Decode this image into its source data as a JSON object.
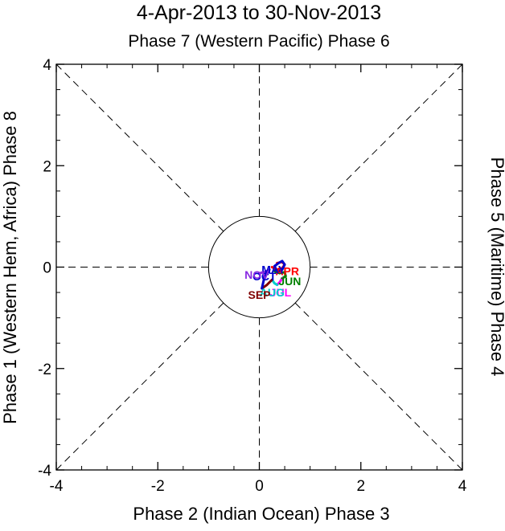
{
  "chart_data": {
    "type": "line",
    "title": "4-Apr-2013 to 30-Nov-2013",
    "top_label": "Phase 7 (Western Pacific) Phase 6",
    "bottom_label": "Phase 2 (Indian Ocean) Phase 3",
    "left_label": "Phase 1 (Western Hem, Africa) Phase 8",
    "right_label": "Phase 5 (Maritime) Phase 4",
    "xlim": [
      -4,
      4
    ],
    "ylim": [
      -4,
      4
    ],
    "x_ticks": [
      -4,
      -2,
      0,
      2,
      4
    ],
    "y_ticks": [
      -4,
      -2,
      0,
      2,
      4
    ],
    "x_tick_labels": [
      "-4",
      "-2",
      "0",
      "2",
      "4"
    ],
    "y_tick_labels": [
      "-4",
      "-2",
      "0",
      "2",
      "4"
    ],
    "unit_circle_radius": 1,
    "series": [
      {
        "name": "APR",
        "color": "#ff0000",
        "x": [
          0.25,
          0.35,
          0.45,
          0.5,
          0.45,
          0.35
        ],
        "y": [
          0.0,
          -0.05,
          -0.02,
          0.05,
          0.1,
          0.08
        ]
      },
      {
        "name": "MAY",
        "color": "#0000cc",
        "x": [
          0.3,
          0.38,
          0.45,
          0.5,
          0.45,
          0.38,
          0.32
        ],
        "y": [
          0.02,
          0.08,
          0.12,
          0.05,
          -0.05,
          -0.08,
          -0.05
        ]
      },
      {
        "name": "JUN",
        "color": "#008000",
        "x": [
          0.3,
          0.4,
          0.5,
          0.52,
          0.45
        ],
        "y": [
          -0.08,
          -0.12,
          -0.1,
          -0.18,
          -0.22
        ]
      },
      {
        "name": "JUL",
        "color": "#ff00ff",
        "x": [
          0.45,
          0.4,
          0.35
        ],
        "y": [
          -0.22,
          -0.3,
          -0.35
        ]
      },
      {
        "name": "AUG",
        "color": "#00cccc",
        "x": [
          0.35,
          0.3,
          0.25
        ],
        "y": [
          -0.35,
          -0.32,
          -0.25
        ]
      },
      {
        "name": "SEP",
        "color": "#800000",
        "x": [
          0.25,
          0.15,
          0.05
        ],
        "y": [
          -0.25,
          -0.35,
          -0.42
        ]
      },
      {
        "name": "OCT",
        "color": "#0000cc",
        "x": [
          0.05,
          0.1,
          0.2
        ],
        "y": [
          -0.42,
          -0.2,
          -0.05
        ]
      },
      {
        "name": "NOV",
        "color": "#8a2be2",
        "x": [
          0.2,
          0.1,
          0.0
        ],
        "y": [
          -0.05,
          -0.1,
          -0.12
        ]
      }
    ],
    "month_labels": [
      {
        "text": "APR",
        "color": "#ff0000",
        "x": 0.55,
        "y": -0.08
      },
      {
        "text": "MAY",
        "color": "#0000cc",
        "x": 0.28,
        "y": -0.05
      },
      {
        "text": "JUN",
        "color": "#008000",
        "x": 0.6,
        "y": -0.28
      },
      {
        "text": "JUL",
        "color": "#ff00ff",
        "x": 0.42,
        "y": -0.5
      },
      {
        "text": "AUG",
        "color": "#00cccc",
        "x": 0.25,
        "y": -0.5
      },
      {
        "text": "SEP",
        "color": "#800000",
        "x": 0.0,
        "y": -0.55
      },
      {
        "text": "OCT",
        "color": "#0000cc",
        "x": 0.1,
        "y": -0.18
      },
      {
        "text": "NOV",
        "color": "#8a2be2",
        "x": -0.05,
        "y": -0.15
      }
    ]
  }
}
